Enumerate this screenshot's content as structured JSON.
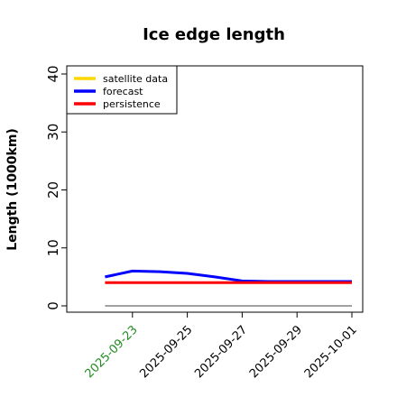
{
  "chart_data": {
    "type": "line",
    "title": "Ice edge length",
    "xlabel": "",
    "ylabel": "Length (1000km)",
    "ylim": [
      0,
      40
    ],
    "yticks": [
      "0",
      "10",
      "20",
      "30",
      "40"
    ],
    "xlim": [
      "2025-09-21",
      "2025-10-01"
    ],
    "xticks": [
      {
        "label": "2025-09-23",
        "date": "2025-09-23",
        "color": "#228B22"
      },
      {
        "label": "2025-09-25",
        "date": "2025-09-25",
        "color": "#000000"
      },
      {
        "label": "2025-09-27",
        "date": "2025-09-27",
        "color": "#000000"
      },
      {
        "label": "2025-09-29",
        "date": "2025-09-29",
        "color": "#000000"
      },
      {
        "label": "2025-10-01",
        "date": "2025-10-01",
        "color": "#000000"
      }
    ],
    "grid": false,
    "legend_position": "top-left",
    "series": [
      {
        "name": "satellite data",
        "color": "#FFD700",
        "x": [],
        "values": []
      },
      {
        "name": "forecast",
        "color": "#0000FF",
        "x": [
          "2025-09-22",
          "2025-09-23",
          "2025-09-24",
          "2025-09-25",
          "2025-09-26",
          "2025-09-27",
          "2025-09-28",
          "2025-09-29",
          "2025-09-30",
          "2025-10-01"
        ],
        "values": [
          5.0,
          6.0,
          5.9,
          5.6,
          5.0,
          4.3,
          4.2,
          4.2,
          4.2,
          4.2
        ]
      },
      {
        "name": "persistence",
        "color": "#FF0000",
        "x": [
          "2025-09-22",
          "2025-10-01"
        ],
        "values": [
          4.0,
          4.0
        ]
      }
    ],
    "reference_line": {
      "value": 0,
      "color": "#808080",
      "x": [
        "2025-09-22",
        "2025-10-01"
      ]
    }
  }
}
